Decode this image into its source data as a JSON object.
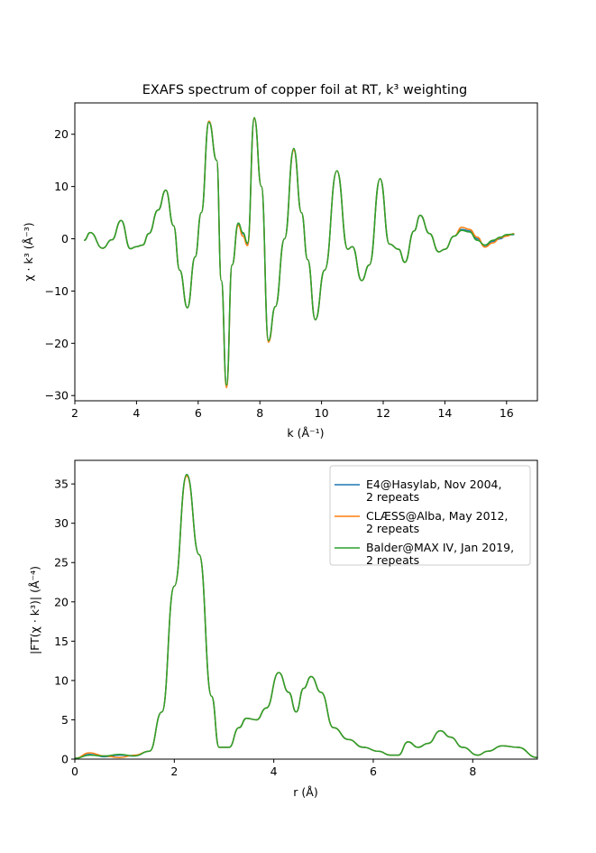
{
  "chart_data": [
    {
      "type": "line",
      "title": "EXAFS spectrum of copper foil at RT, k³ weighting",
      "xlabel": "k (Å⁻¹)",
      "ylabel": "χ · k³ (Å⁻³)",
      "xlim": [
        2,
        17
      ],
      "ylim": [
        -31,
        26
      ],
      "xticks": [
        2,
        4,
        6,
        8,
        10,
        12,
        14,
        16
      ],
      "yticks": [
        -30,
        -20,
        -10,
        0,
        10,
        20
      ],
      "grid": false,
      "series": [
        {
          "name": "E4@Hasylab, Nov 2004, 2 repeats",
          "color": "#1f77b4",
          "x": [
            2.3,
            2.5,
            2.9,
            3.2,
            3.5,
            3.8,
            4.0,
            4.2,
            4.4,
            4.7,
            4.95,
            5.2,
            5.4,
            5.65,
            5.9,
            6.1,
            6.35,
            6.6,
            6.75,
            6.92,
            7.1,
            7.3,
            7.45,
            7.6,
            7.82,
            8.05,
            8.28,
            8.5,
            8.8,
            9.1,
            9.35,
            9.55,
            9.8,
            10.1,
            10.5,
            10.85,
            11.0,
            11.3,
            11.55,
            11.9,
            12.2,
            12.5,
            12.7,
            13.0,
            13.2,
            13.5,
            13.8,
            14.0,
            14.3,
            14.55,
            14.8,
            15.05,
            15.3,
            15.55,
            15.8,
            16.0,
            16.25
          ],
          "y": [
            -0.3,
            1.2,
            -1.8,
            -0.2,
            3.5,
            -1.9,
            -1.5,
            -1.2,
            1.0,
            5.5,
            9.3,
            2.5,
            -6.0,
            -13.2,
            -3.5,
            5.0,
            22.5,
            15.0,
            -8.0,
            -28.0,
            -5.0,
            2.8,
            1.0,
            -1.0,
            23.0,
            10.0,
            -19.5,
            -13.0,
            0.0,
            17.0,
            5.0,
            -4.0,
            -15.5,
            -6.0,
            13.0,
            -2.0,
            -1.5,
            -8.0,
            -5.0,
            11.5,
            -1.0,
            -2.0,
            -4.5,
            1.5,
            4.5,
            1.0,
            -2.5,
            -2.0,
            0.5,
            1.8,
            1.5,
            0.0,
            -1.5,
            -0.5,
            0.0,
            0.7,
            0.8
          ]
        },
        {
          "name": "CLÆSS@Alba, May 2012, 2 repeats",
          "color": "#ff7f0e",
          "x": [
            2.3,
            2.5,
            2.9,
            3.2,
            3.5,
            3.8,
            4.0,
            4.2,
            4.4,
            4.7,
            4.95,
            5.2,
            5.4,
            5.65,
            5.9,
            6.1,
            6.35,
            6.6,
            6.75,
            6.92,
            7.1,
            7.3,
            7.45,
            7.6,
            7.82,
            8.05,
            8.28,
            8.5,
            8.8,
            9.1,
            9.35,
            9.55,
            9.8,
            10.1,
            10.5,
            10.85,
            11.0,
            11.3,
            11.55,
            11.9,
            12.2,
            12.5,
            12.7,
            13.0,
            13.2,
            13.5,
            13.8,
            14.0,
            14.3,
            14.55,
            14.8,
            15.05,
            15.3,
            15.55,
            15.8,
            16.0,
            16.25
          ],
          "y": [
            -0.3,
            1.2,
            -1.8,
            -0.2,
            3.5,
            -1.9,
            -1.5,
            -1.2,
            1.0,
            5.5,
            9.3,
            2.5,
            -6.0,
            -13.2,
            -3.5,
            5.0,
            22.5,
            15.0,
            -8.0,
            -28.5,
            -5.0,
            2.6,
            0.5,
            -1.3,
            23.0,
            10.0,
            -19.8,
            -13.0,
            0.0,
            17.0,
            5.0,
            -4.0,
            -15.5,
            -6.0,
            13.0,
            -2.0,
            -1.5,
            -8.0,
            -5.0,
            11.5,
            -1.0,
            -2.0,
            -4.5,
            1.5,
            4.5,
            1.0,
            -2.5,
            -2.0,
            0.5,
            2.2,
            1.8,
            0.3,
            -1.6,
            -0.8,
            0.2,
            0.5,
            1.0
          ]
        },
        {
          "name": "Balder@MAX IV, Jan 2019, 2 repeats",
          "color": "#2ca02c",
          "x": [
            2.3,
            2.5,
            2.9,
            3.2,
            3.5,
            3.8,
            4.0,
            4.2,
            4.4,
            4.7,
            4.95,
            5.2,
            5.4,
            5.65,
            5.9,
            6.1,
            6.35,
            6.6,
            6.75,
            6.92,
            7.1,
            7.3,
            7.45,
            7.6,
            7.82,
            8.05,
            8.28,
            8.5,
            8.8,
            9.1,
            9.35,
            9.55,
            9.8,
            10.1,
            10.5,
            10.85,
            11.0,
            11.3,
            11.55,
            11.9,
            12.2,
            12.5,
            12.7,
            13.0,
            13.2,
            13.5,
            13.8,
            14.0,
            14.3,
            14.55,
            14.8,
            15.05,
            15.3,
            15.55,
            15.8,
            16.0,
            16.25
          ],
          "y": [
            -0.3,
            1.2,
            -1.8,
            -0.2,
            3.5,
            -1.9,
            -1.5,
            -1.2,
            1.0,
            5.5,
            9.3,
            2.5,
            -6.0,
            -13.2,
            -3.5,
            5.0,
            22.3,
            15.0,
            -8.0,
            -28.0,
            -5.0,
            3.0,
            1.2,
            -0.8,
            23.2,
            10.0,
            -19.5,
            -13.0,
            0.0,
            17.3,
            5.0,
            -4.0,
            -15.5,
            -6.0,
            13.0,
            -2.0,
            -1.5,
            -8.0,
            -5.0,
            11.5,
            -1.0,
            -2.0,
            -4.5,
            1.5,
            4.5,
            1.0,
            -2.5,
            -2.0,
            0.5,
            1.6,
            1.3,
            -0.3,
            -1.2,
            -0.3,
            0.3,
            0.8,
            0.9
          ]
        }
      ]
    },
    {
      "type": "line",
      "title": "",
      "xlabel": "r (Å)",
      "ylabel": "|FT(χ · k³)| (Å⁻⁴)",
      "xlim": [
        0,
        9.3
      ],
      "ylim": [
        0,
        38
      ],
      "xticks": [
        0,
        2,
        4,
        6,
        8
      ],
      "yticks": [
        0,
        5,
        10,
        15,
        20,
        25,
        30,
        35
      ],
      "grid": false,
      "legend": "top-right",
      "series": [
        {
          "name": "E4@Hasylab, Nov 2004,\n2 repeats",
          "color": "#1f77b4",
          "x": [
            0,
            0.3,
            0.6,
            0.9,
            1.2,
            1.5,
            1.75,
            2.0,
            2.25,
            2.5,
            2.75,
            2.9,
            3.1,
            3.3,
            3.45,
            3.65,
            3.85,
            4.1,
            4.3,
            4.45,
            4.6,
            4.75,
            4.95,
            5.2,
            5.5,
            5.8,
            6.1,
            6.35,
            6.5,
            6.7,
            6.9,
            7.1,
            7.35,
            7.55,
            7.8,
            8.1,
            8.3,
            8.6,
            8.9,
            9.3
          ],
          "y": [
            0.1,
            0.6,
            0.3,
            0.5,
            0.4,
            1.0,
            6.0,
            22.0,
            36.2,
            26.0,
            8.0,
            1.5,
            1.5,
            4.0,
            5.2,
            5.0,
            6.5,
            11.0,
            8.5,
            6.0,
            9.0,
            10.5,
            8.5,
            4.0,
            2.5,
            1.5,
            1.0,
            0.5,
            0.5,
            2.2,
            1.5,
            2.0,
            3.6,
            2.8,
            1.5,
            0.5,
            1.0,
            1.7,
            1.5,
            0.2
          ]
        },
        {
          "name": "CLÆSS@Alba, May 2012,\n2 repeats",
          "color": "#ff7f0e",
          "x": [
            0,
            0.3,
            0.6,
            0.9,
            1.2,
            1.5,
            1.75,
            2.0,
            2.25,
            2.5,
            2.75,
            2.9,
            3.1,
            3.3,
            3.45,
            3.65,
            3.85,
            4.1,
            4.3,
            4.45,
            4.6,
            4.75,
            4.95,
            5.2,
            5.5,
            5.8,
            6.1,
            6.35,
            6.5,
            6.7,
            6.9,
            7.1,
            7.35,
            7.55,
            7.8,
            8.1,
            8.3,
            8.6,
            8.9,
            9.3
          ],
          "y": [
            0.1,
            0.8,
            0.4,
            0.2,
            0.5,
            1.0,
            6.0,
            22.0,
            36.0,
            26.0,
            8.0,
            1.5,
            1.5,
            4.0,
            5.2,
            5.0,
            6.5,
            11.0,
            8.5,
            6.0,
            9.0,
            10.5,
            8.5,
            4.0,
            2.5,
            1.5,
            1.0,
            0.5,
            0.5,
            2.2,
            1.5,
            2.0,
            3.6,
            2.8,
            1.5,
            0.5,
            1.0,
            1.7,
            1.5,
            0.2
          ]
        },
        {
          "name": "Balder@MAX IV, Jan 2019,\n2 repeats",
          "color": "#2ca02c",
          "x": [
            0,
            0.3,
            0.6,
            0.9,
            1.2,
            1.5,
            1.75,
            2.0,
            2.25,
            2.5,
            2.75,
            2.9,
            3.1,
            3.3,
            3.45,
            3.65,
            3.85,
            4.1,
            4.3,
            4.45,
            4.6,
            4.75,
            4.95,
            5.2,
            5.5,
            5.8,
            6.1,
            6.35,
            6.5,
            6.7,
            6.9,
            7.1,
            7.35,
            7.55,
            7.8,
            8.1,
            8.3,
            8.6,
            8.9,
            9.3
          ],
          "y": [
            0.1,
            0.5,
            0.4,
            0.6,
            0.4,
            1.0,
            6.0,
            22.0,
            36.2,
            26.0,
            8.0,
            1.5,
            1.5,
            4.0,
            5.2,
            5.0,
            6.5,
            11.0,
            8.5,
            6.0,
            9.0,
            10.5,
            8.5,
            4.0,
            2.5,
            1.5,
            1.0,
            0.5,
            0.5,
            2.2,
            1.5,
            2.0,
            3.6,
            2.8,
            1.5,
            0.5,
            1.0,
            1.7,
            1.5,
            0.2
          ]
        }
      ]
    }
  ]
}
